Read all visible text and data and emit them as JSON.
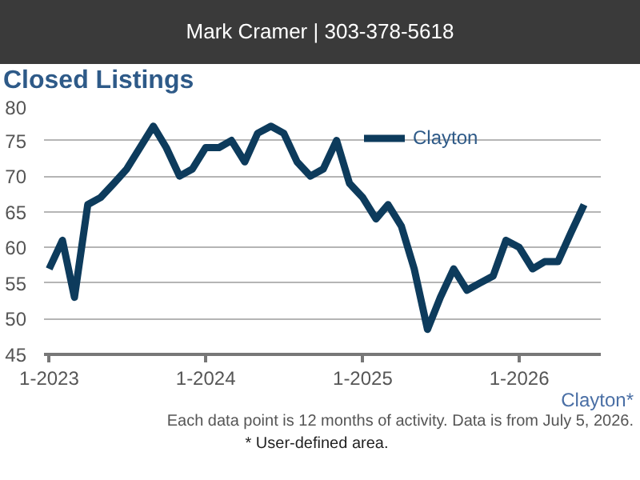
{
  "chart_data": {
    "type": "line",
    "title": "Closed Listings",
    "subtitle": "Mark Cramer | 303-378-5618",
    "x": [
      "2023-01",
      "2023-02",
      "2023-03",
      "2023-04",
      "2023-05",
      "2023-06",
      "2023-07",
      "2023-08",
      "2023-09",
      "2023-10",
      "2023-11",
      "2023-12",
      "2024-01",
      "2024-02",
      "2024-03",
      "2024-04",
      "2024-05",
      "2024-06",
      "2024-07",
      "2024-08",
      "2024-09",
      "2024-10",
      "2024-11",
      "2024-12",
      "2025-01",
      "2025-02",
      "2025-03",
      "2025-04",
      "2025-05",
      "2025-06",
      "2025-07",
      "2025-08",
      "2025-09",
      "2025-10",
      "2025-11",
      "2025-12",
      "2026-01",
      "2026-02",
      "2026-03",
      "2026-04",
      "2026-05",
      "2026-06"
    ],
    "series": [
      {
        "name": "Clayton",
        "color": "#0d3b5c",
        "values": [
          57,
          61,
          53,
          66,
          67,
          69,
          71,
          74,
          77,
          74,
          70,
          71,
          74,
          74,
          75,
          72,
          76,
          77,
          76,
          72,
          70,
          71,
          75,
          69,
          67,
          64,
          66,
          63,
          57,
          48.5,
          53,
          57,
          54,
          55,
          56,
          61,
          60,
          57,
          58,
          58,
          62,
          66
        ]
      }
    ],
    "xlim": [
      "2022-12-20",
      "2026-07-10"
    ],
    "xticks": [
      {
        "value": "2023-01",
        "label": "1-2023"
      },
      {
        "value": "2024-01",
        "label": "1-2024"
      },
      {
        "value": "2025-01",
        "label": "1-2025"
      },
      {
        "value": "2026-01",
        "label": "1-2026"
      }
    ],
    "ylim": [
      45,
      80
    ],
    "yticks": [
      45,
      50,
      55,
      60,
      65,
      70,
      75,
      80
    ],
    "grid": "y",
    "legend": "top",
    "marker": "none",
    "line_style": "solid",
    "annotations": [
      "Clayton*",
      "Each data point is 12 months of activity. Data is from July 5, 2026.",
      "* User-defined area."
    ]
  }
}
